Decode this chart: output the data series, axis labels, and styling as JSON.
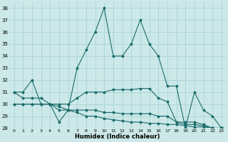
{
  "xlabel": "Humidex (Indice chaleur)",
  "bg_color": "#cce8e8",
  "grid_color": "#aad4d4",
  "line_color": "#1a6b6b",
  "x_values": [
    0,
    1,
    2,
    3,
    4,
    5,
    6,
    7,
    8,
    9,
    10,
    11,
    12,
    13,
    14,
    15,
    16,
    17,
    18,
    19,
    20,
    21,
    22,
    23
  ],
  "series": [
    [
      31.0,
      31.0,
      32.0,
      30.0,
      30.0,
      28.5,
      29.5,
      33.0,
      34.5,
      36.0,
      38.0,
      34.0,
      34.0,
      35.0,
      37.0,
      35.0,
      34.0,
      31.5,
      31.5,
      28.0,
      31.0,
      29.5,
      29.0,
      28.0
    ],
    [
      31.0,
      30.5,
      30.5,
      30.5,
      30.0,
      30.0,
      30.0,
      30.5,
      31.0,
      31.0,
      31.0,
      31.2,
      31.2,
      31.2,
      31.3,
      31.3,
      30.5,
      30.2,
      28.5,
      28.5,
      28.5,
      28.3,
      28.0,
      28.0
    ],
    [
      30.0,
      30.0,
      30.0,
      30.0,
      30.0,
      29.5,
      29.5,
      29.5,
      29.5,
      29.5,
      29.3,
      29.3,
      29.2,
      29.2,
      29.2,
      29.2,
      29.0,
      29.0,
      28.5,
      28.3,
      28.3,
      28.2,
      28.0,
      28.0
    ],
    [
      30.0,
      30.0,
      30.0,
      30.0,
      30.0,
      29.8,
      29.5,
      29.3,
      29.0,
      29.0,
      28.8,
      28.7,
      28.6,
      28.5,
      28.5,
      28.4,
      28.4,
      28.3,
      28.3,
      28.2,
      28.1,
      28.1,
      28.0,
      28.0
    ]
  ],
  "ylim": [
    28,
    38.5
  ],
  "yticks": [
    28,
    29,
    30,
    31,
    32,
    33,
    34,
    35,
    36,
    37,
    38
  ],
  "xticks": [
    0,
    1,
    2,
    3,
    4,
    5,
    6,
    7,
    8,
    9,
    10,
    11,
    12,
    13,
    14,
    15,
    16,
    17,
    18,
    19,
    20,
    21,
    22,
    23
  ]
}
